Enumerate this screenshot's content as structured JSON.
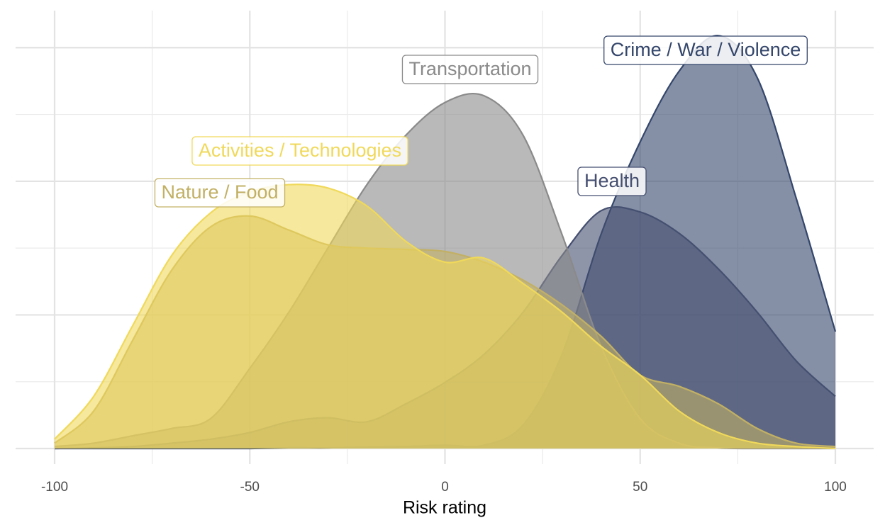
{
  "chart_data": {
    "type": "density",
    "x_label": "Risk rating",
    "x": [
      -100,
      -90,
      -80,
      -70,
      -60,
      -50,
      -40,
      -30,
      -20,
      -10,
      0,
      10,
      20,
      30,
      40,
      50,
      60,
      70,
      80,
      90,
      100
    ],
    "xlim": [
      -100,
      100
    ],
    "xticks": [
      -100,
      -50,
      0,
      50,
      100
    ],
    "ylim": [
      0,
      6.3
    ],
    "yticks": [
      0,
      1,
      2,
      3,
      4,
      5,
      6
    ],
    "grid": true,
    "series": [
      {
        "name": "Crime / War / Violence",
        "color": "#34466b",
        "values": [
          0,
          0,
          0,
          0,
          0,
          0,
          0.01,
          0.01,
          0.02,
          0.03,
          0.05,
          0.05,
          0.35,
          1.41,
          3.21,
          4.59,
          5.65,
          6.18,
          5.55,
          3.74,
          1.75
        ]
      },
      {
        "name": "Health",
        "color": "#454f70",
        "values": [
          0,
          0.01,
          0.03,
          0.08,
          0.14,
          0.24,
          0.4,
          0.46,
          0.4,
          0.67,
          0.99,
          1.41,
          2.04,
          2.89,
          3.56,
          3.54,
          3.22,
          2.69,
          2.04,
          1.31,
          0.78
        ]
      },
      {
        "name": "Transportation",
        "color": "#8a8a8a",
        "values": [
          0.03,
          0.08,
          0.19,
          0.3,
          0.45,
          1.2,
          2.04,
          3.0,
          3.95,
          4.69,
          5.18,
          5.28,
          4.69,
          3.2,
          1.53,
          0.45,
          0.08,
          0.01,
          0,
          0,
          0
        ]
      },
      {
        "name": "Nature / Food",
        "color": "#c2b064",
        "values": [
          0.08,
          0.56,
          1.62,
          2.67,
          3.32,
          3.48,
          3.27,
          3.05,
          3.0,
          2.98,
          2.95,
          2.79,
          2.52,
          2.15,
          1.68,
          1.1,
          0.93,
          0.67,
          0.3,
          0.08,
          0.03
        ]
      },
      {
        "name": "Activities / Technologies",
        "color": "#f0d95a",
        "values": [
          0.14,
          0.78,
          1.84,
          2.89,
          3.53,
          3.84,
          3.95,
          3.9,
          3.63,
          3.1,
          2.79,
          2.85,
          2.47,
          2.04,
          1.53,
          1.1,
          0.56,
          0.24,
          0.08,
          0.03,
          0
        ]
      }
    ]
  }
}
